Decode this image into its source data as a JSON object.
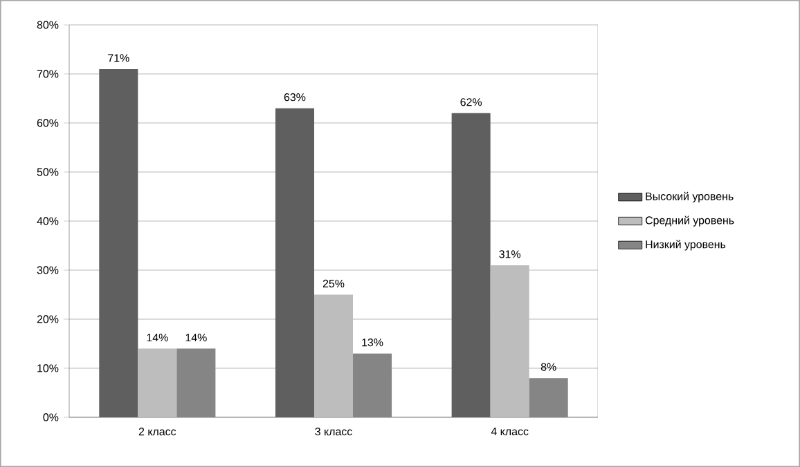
{
  "chart_data": {
    "type": "bar",
    "categories": [
      "2 класс",
      "3 класс",
      "4 класс"
    ],
    "series": [
      {
        "name": "Высокий уровень",
        "color": "#5f5f5f",
        "values": [
          71,
          63,
          62
        ],
        "value_labels": [
          "71%",
          "63%",
          "62%"
        ]
      },
      {
        "name": "Средний  уровень",
        "color": "#bdbdbd",
        "values": [
          14,
          25,
          31
        ],
        "value_labels": [
          "14%",
          "25%",
          "31%"
        ]
      },
      {
        "name": "Низкий уровень",
        "color": "#858585",
        "values": [
          14,
          13,
          8
        ],
        "value_labels": [
          "14%",
          "13%",
          "8%"
        ]
      }
    ],
    "ylim": [
      0,
      80
    ],
    "yticks": [
      {
        "value": 0,
        "label": "0%"
      },
      {
        "value": 10,
        "label": "10%"
      },
      {
        "value": 20,
        "label": "20%"
      },
      {
        "value": 30,
        "label": "30%"
      },
      {
        "value": 40,
        "label": "40%"
      },
      {
        "value": 50,
        "label": "50%"
      },
      {
        "value": 60,
        "label": "60%"
      },
      {
        "value": 70,
        "label": "70%"
      },
      {
        "value": 80,
        "label": "80%"
      }
    ],
    "grid": "y",
    "legend": "right"
  }
}
